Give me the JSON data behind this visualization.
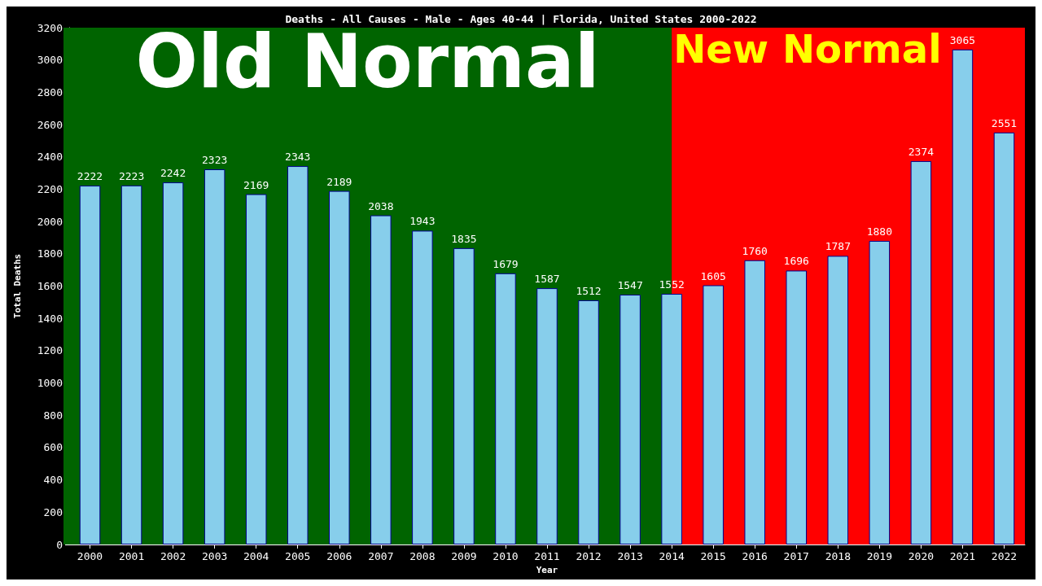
{
  "chart_data": {
    "type": "bar",
    "title": "Deaths - All Causes - Male - Ages 40-44 | Florida, United States 2000-2022",
    "xlabel": "Year",
    "ylabel": "Total Deaths",
    "categories": [
      "2000",
      "2001",
      "2002",
      "2003",
      "2004",
      "2005",
      "2006",
      "2007",
      "2008",
      "2009",
      "2010",
      "2011",
      "2012",
      "2013",
      "2014",
      "2015",
      "2016",
      "2017",
      "2018",
      "2019",
      "2020",
      "2021",
      "2022"
    ],
    "values": [
      2222,
      2223,
      2242,
      2323,
      2169,
      2343,
      2189,
      2038,
      1943,
      1835,
      1679,
      1587,
      1512,
      1547,
      1552,
      1605,
      1760,
      1696,
      1787,
      1880,
      2374,
      3065,
      2551
    ],
    "color": "#87ceeb",
    "data_labels": true,
    "grid": false,
    "ylim": [
      0,
      3200
    ],
    "yticks": [
      0,
      200,
      400,
      600,
      800,
      1000,
      1200,
      1400,
      1600,
      1800,
      2000,
      2200,
      2400,
      2600,
      2800,
      3000,
      3200
    ],
    "bands": [
      {
        "axis": "x",
        "from": "2000",
        "to": "2014",
        "label": "Old Normal",
        "color": "#006400"
      },
      {
        "axis": "x",
        "from": "2014",
        "to": "2022",
        "label": "New Normal",
        "color": "#ff0000"
      }
    ]
  }
}
